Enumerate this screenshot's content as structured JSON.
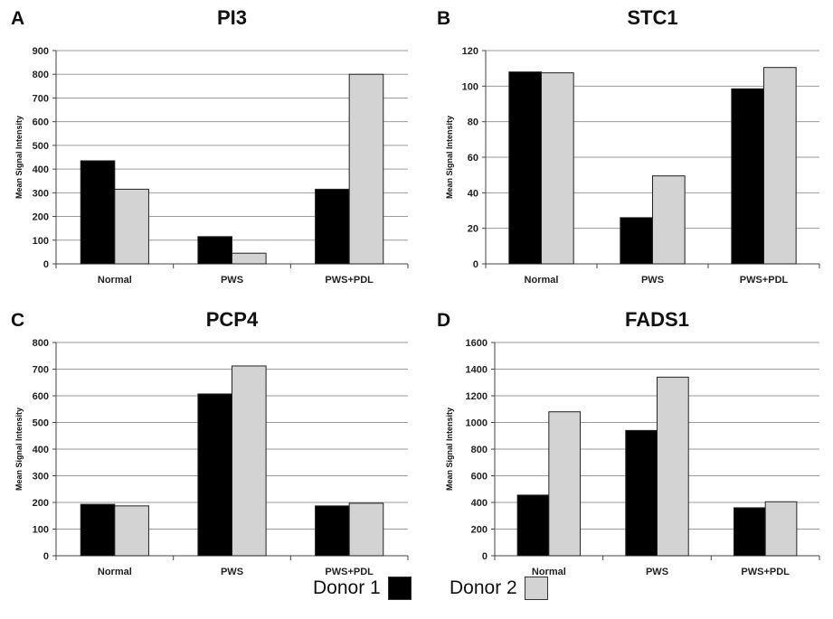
{
  "figure": {
    "legend": [
      {
        "label": "Donor 1",
        "color": "#000000"
      },
      {
        "label": "Donor 2",
        "color": "#d3d3d3"
      }
    ],
    "colors": {
      "donor1": "#000000",
      "donor2": "#d3d3d3",
      "grid": "#9a9a9a",
      "axis": "#444444"
    }
  },
  "chart_data": [
    {
      "panel": "A",
      "type": "bar",
      "title": "PI3",
      "xlabel": "",
      "ylabel": "Mean Signal Intensity",
      "categories": [
        "Normal",
        "PWS",
        "PWS+PDL"
      ],
      "ylim": [
        0,
        900
      ],
      "yticks": [
        0,
        100,
        200,
        300,
        400,
        500,
        600,
        700,
        800,
        900
      ],
      "grid": true,
      "series": [
        {
          "name": "Donor 1",
          "values": [
            435,
            115,
            315
          ]
        },
        {
          "name": "Donor 2",
          "values": [
            315,
            45,
            800
          ]
        }
      ]
    },
    {
      "panel": "B",
      "type": "bar",
      "title": "STC1",
      "xlabel": "",
      "ylabel": "Mean Signal Intensity",
      "categories": [
        "Normal",
        "PWS",
        "PWS+PDL"
      ],
      "ylim": [
        0,
        120
      ],
      "yticks": [
        0,
        20,
        40,
        60,
        80,
        100,
        120
      ],
      "grid": true,
      "series": [
        {
          "name": "Donor 1",
          "values": [
            108,
            26,
            98.5
          ]
        },
        {
          "name": "Donor 2",
          "values": [
            107.5,
            49.5,
            110.5
          ]
        }
      ]
    },
    {
      "panel": "C",
      "type": "bar",
      "title": "PCP4",
      "xlabel": "",
      "ylabel": "Mean Signal Intensity",
      "categories": [
        "Normal",
        "PWS",
        "PWS+PDL"
      ],
      "ylim": [
        0,
        800
      ],
      "yticks": [
        0,
        100,
        200,
        300,
        400,
        500,
        600,
        700,
        800
      ],
      "grid": true,
      "series": [
        {
          "name": "Donor 1",
          "values": [
            193,
            607,
            187
          ]
        },
        {
          "name": "Donor 2",
          "values": [
            187,
            712,
            197
          ]
        }
      ]
    },
    {
      "panel": "D",
      "type": "bar",
      "title": "FADS1",
      "xlabel": "",
      "ylabel": "Mean Signal Intensity",
      "categories": [
        "Normal",
        "PWS",
        "PWS+PDL"
      ],
      "ylim": [
        0,
        1600
      ],
      "yticks": [
        0,
        200,
        400,
        600,
        800,
        1000,
        1200,
        1400,
        1600
      ],
      "grid": true,
      "series": [
        {
          "name": "Donor 1",
          "values": [
            455,
            940,
            360
          ]
        },
        {
          "name": "Donor 2",
          "values": [
            1080,
            1340,
            405
          ]
        }
      ]
    }
  ]
}
